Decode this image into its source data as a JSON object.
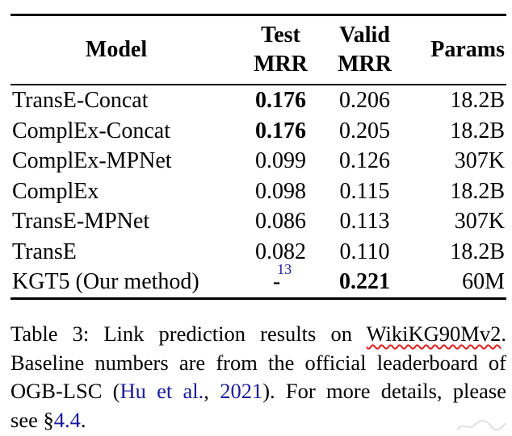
{
  "table": {
    "headers": {
      "model": "Model",
      "test_line1": "Test",
      "test_line2": "MRR",
      "valid_line1": "Valid",
      "valid_line2": "MRR",
      "params": "Params"
    },
    "rows": [
      {
        "model": "TransE-Concat",
        "test": "0.176",
        "test_bold": true,
        "valid": "0.206",
        "valid_bold": false,
        "params": "18.2B"
      },
      {
        "model": "ComplEx-Concat",
        "test": "0.176",
        "test_bold": true,
        "valid": "0.205",
        "valid_bold": false,
        "params": "18.2B"
      },
      {
        "model": "ComplEx-MPNet",
        "test": "0.099",
        "test_bold": false,
        "valid": "0.126",
        "valid_bold": false,
        "params": "307K"
      },
      {
        "model": "ComplEx",
        "test": "0.098",
        "test_bold": false,
        "valid": "0.115",
        "valid_bold": false,
        "params": "18.2B"
      },
      {
        "model": "TransE-MPNet",
        "test": "0.086",
        "test_bold": false,
        "valid": "0.113",
        "valid_bold": false,
        "params": "307K"
      },
      {
        "model": "TransE",
        "test": "0.082",
        "test_bold": false,
        "valid": "0.110",
        "valid_bold": false,
        "params": "18.2B"
      },
      {
        "model": "KGT5 (Our method)",
        "test": "-",
        "test_footnote": "13",
        "test_bold": false,
        "valid": "0.221",
        "valid_bold": true,
        "params": "60M"
      }
    ]
  },
  "caption": {
    "line1_a": "Table 3:  Link prediction results on ",
    "line1_b": "WikiKG90Mv2",
    "line1_c": ".",
    "line2": "Baseline numbers are from the official leaderboard of",
    "line3_a": "OGB-LSC (",
    "line3_b": "Hu et al.",
    "line3_c": ", ",
    "line3_d": "2021",
    "line3_e": ").  For more details, please",
    "line4_a": "see §",
    "line4_b": "4.4",
    "line4_c": "."
  },
  "colors": {
    "link": "#1a1a9c",
    "spellcheck_underline": "#e02020"
  }
}
